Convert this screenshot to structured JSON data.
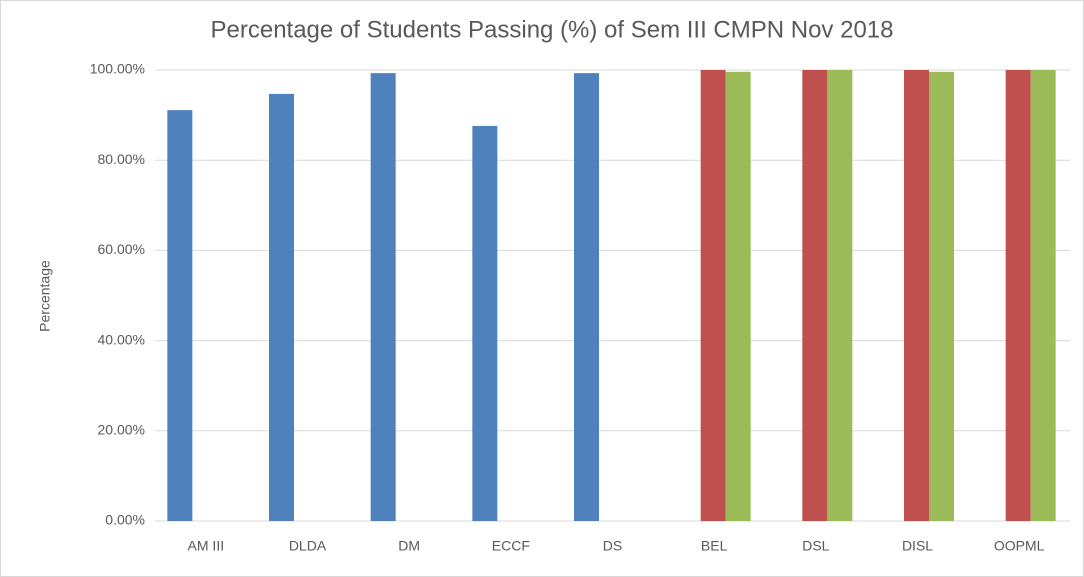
{
  "chart_data": {
    "type": "bar",
    "title": "Percentage of Students Passing (%) of Sem III CMPN Nov 2018",
    "y_label": "Percentage",
    "categories": [
      "AM III",
      "DLDA",
      "DM",
      "ECCF",
      "DS",
      "BEL",
      "DSL",
      "DISL",
      "OOPML"
    ],
    "series": [
      {
        "color": "#4f81bd",
        "values": [
          91.1,
          94.7,
          99.3,
          87.6,
          99.3,
          null,
          null,
          null,
          null
        ]
      },
      {
        "color": "#c0504d",
        "values": [
          null,
          null,
          null,
          null,
          null,
          100,
          100,
          100,
          100
        ]
      },
      {
        "color": "#9bbb59",
        "values": [
          null,
          null,
          null,
          null,
          null,
          99.6,
          100,
          99.6,
          100
        ]
      }
    ],
    "ylim": [
      0,
      100
    ],
    "yticks": [
      {
        "value": 0,
        "label": "0.00%"
      },
      {
        "value": 20,
        "label": "20.00%"
      },
      {
        "value": 40,
        "label": "40.00%"
      },
      {
        "value": 60,
        "label": "60.00%"
      },
      {
        "value": 80,
        "label": "80.00%"
      },
      {
        "value": 100,
        "label": "100.00%"
      }
    ],
    "grid": true
  }
}
